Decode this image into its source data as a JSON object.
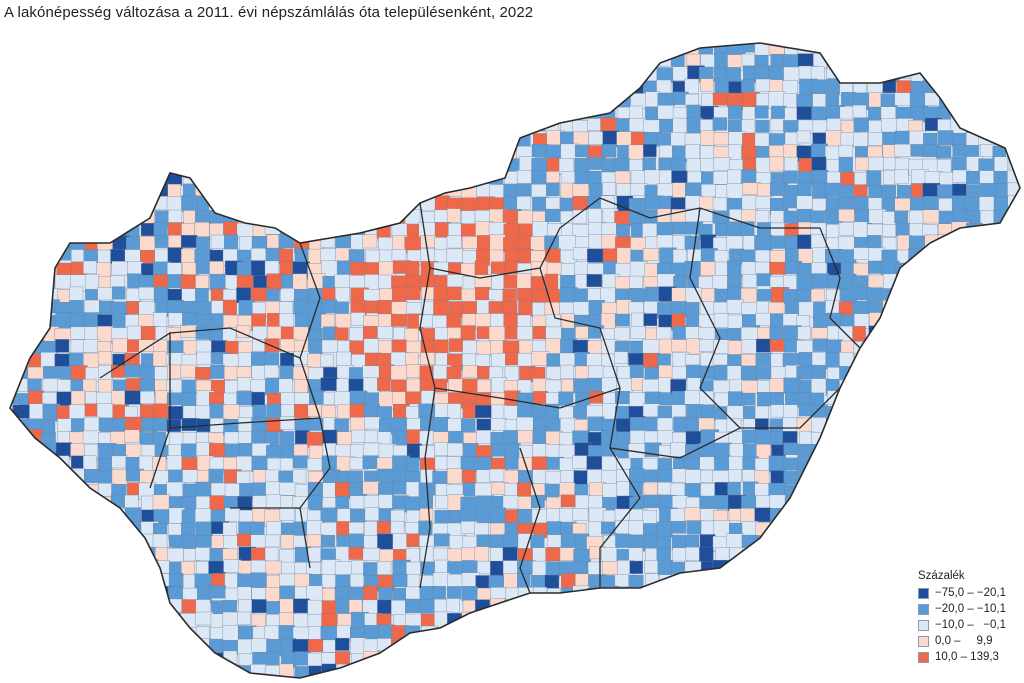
{
  "title": "A lakónépesség változása a 2011. évi népszámlálás óta településenként, 2022",
  "legend": {
    "title": "Százalék",
    "classes": [
      {
        "label": "−75,0 – −20,1",
        "color": "#1f4e9a"
      },
      {
        "label": "−20,0 – −10,1",
        "color": "#5b9bd5"
      },
      {
        "label": "−10,0 –   −0,1",
        "color": "#dce8f5"
      },
      {
        "label": "0,0 –     9,9",
        "color": "#fbd9cc"
      },
      {
        "label": "10,0 – 139,3",
        "color": "#f0684a"
      }
    ]
  },
  "map": {
    "country_fill": "#dce8f5",
    "border_color": "#2b2b2b"
  }
}
